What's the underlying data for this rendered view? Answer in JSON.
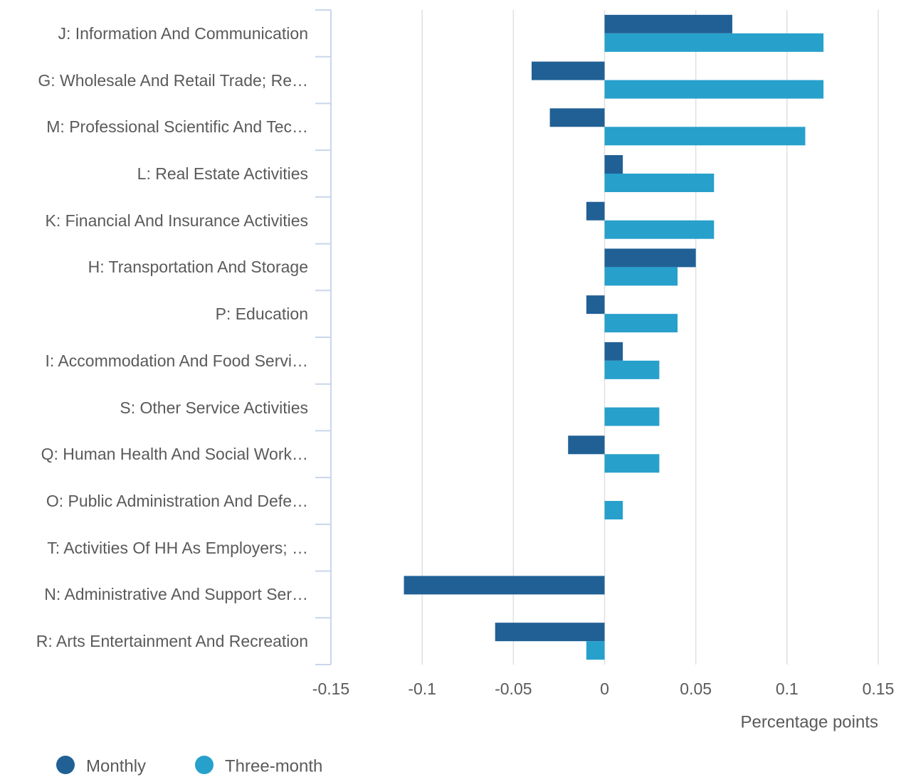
{
  "chart_data": {
    "type": "bar",
    "orientation": "horizontal",
    "categories": [
      "J: Information And Communication",
      "G: Wholesale And Retail Trade; Re…",
      "M: Professional Scientific And Tec…",
      "L: Real Estate Activities",
      "K: Financial And Insurance Activities",
      "H: Transportation And Storage",
      "P: Education",
      "I: Accommodation And Food Servi…",
      "S: Other Service Activities",
      "Q: Human Health And Social Work…",
      "O: Public Administration And Defe…",
      "T: Activities Of HH As Employers; …",
      "N: Administrative And Support Ser…",
      "R: Arts Entertainment And Recreation"
    ],
    "series": [
      {
        "name": "Monthly",
        "color": "#206095",
        "values": [
          0.07,
          -0.04,
          -0.03,
          0.01,
          -0.01,
          0.05,
          -0.01,
          0.01,
          0,
          -0.02,
          0,
          0,
          -0.11,
          -0.06
        ]
      },
      {
        "name": "Three-month",
        "color": "#27a0cc",
        "values": [
          0.12,
          0.12,
          0.11,
          0.06,
          0.06,
          0.04,
          0.04,
          0.03,
          0.03,
          0.03,
          0.01,
          0,
          0,
          -0.01
        ]
      }
    ],
    "xlabel": "Percentage points",
    "xlim": [
      -0.15,
      0.15
    ],
    "xticks": [
      -0.15,
      -0.1,
      -0.05,
      0,
      0.05,
      0.1,
      0.15
    ],
    "grid": true,
    "legend": "bottom-left"
  }
}
